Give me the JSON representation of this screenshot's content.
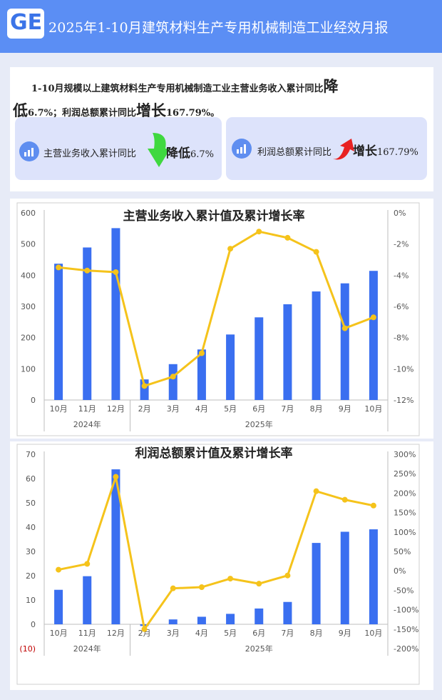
{
  "header": {
    "logo_text": "GE",
    "title": "2025年1-10月建筑材料生产专用机械制造工业经效月报"
  },
  "summary": {
    "text_part1": "1-10月规模以上建筑材料生产专用机械制造工业主营业务收入累计同比",
    "text_big1": "降",
    "text_big1b": "低",
    "text_part2": "6.7%；利润总额累计同比",
    "text_big2": "增长",
    "text_part3": "167.79%。"
  },
  "stats": [
    {
      "label": "主营业务收入累计同比",
      "direction": "降低",
      "value": "6.7%",
      "arrow": "down-arrow-icon",
      "arrow_color": "#3bd63b"
    },
    {
      "label": "利润总额累计同比",
      "direction": "增长",
      "value": "167.79%",
      "arrow": "up-arrow-icon",
      "arrow_color": "#e82020"
    }
  ],
  "colors": {
    "bar": "#3a6ff0",
    "line": "#f5c31b",
    "header": "#5b8ef4"
  },
  "chart_data": [
    {
      "type": "bar",
      "title": "主营业务收入累计值及累计增长率",
      "categories": [
        "10月",
        "11月",
        "12月",
        "2月",
        "3月",
        "4月",
        "5月",
        "6月",
        "7月",
        "8月",
        "9月",
        "10月"
      ],
      "groups": [
        {
          "label": "2024年",
          "span": 3
        },
        {
          "label": "2025年",
          "span": 9
        }
      ],
      "series": [
        {
          "values": [
            437,
            489,
            551,
            66,
            115,
            162,
            210,
            265,
            307,
            348,
            374,
            414
          ],
          "axis": "left",
          "type": "bar"
        },
        {
          "values": [
            -3.5,
            -3.7,
            -3.8,
            -11.1,
            -10.5,
            -9.0,
            -2.3,
            -1.2,
            -1.6,
            -2.5,
            -7.4,
            -6.7
          ],
          "axis": "right",
          "type": "line"
        }
      ],
      "y_left": {
        "min": 0,
        "max": 600,
        "ticks": [
          "0",
          "100",
          "200",
          "300",
          "400",
          "500",
          "600"
        ]
      },
      "y_right": {
        "min": -12,
        "max": 0,
        "ticks": [
          "-12%",
          "-10%",
          "-8%",
          "-6%",
          "-4%",
          "-2%",
          "0%"
        ]
      }
    },
    {
      "type": "bar",
      "title": "利润总额累计值及累计增长率",
      "categories": [
        "10月",
        "11月",
        "12月",
        "2月",
        "3月",
        "4月",
        "5月",
        "6月",
        "7月",
        "8月",
        "9月",
        "10月"
      ],
      "groups": [
        {
          "label": "2024年",
          "span": 3
        },
        {
          "label": "2025年",
          "span": 9
        }
      ],
      "series": [
        {
          "values": [
            14.2,
            19.8,
            63.8,
            -0.7,
            2.0,
            3.1,
            4.3,
            6.5,
            9.2,
            33.5,
            38.1,
            39.1
          ],
          "axis": "left",
          "type": "bar"
        },
        {
          "values": [
            3,
            18,
            242,
            -150,
            -45,
            -42,
            -20,
            -33,
            -12,
            205,
            183,
            168
          ],
          "axis": "right",
          "type": "line"
        }
      ],
      "y_left": {
        "min": -10,
        "max": 70,
        "ticks": [
          "(10)",
          "0",
          "10",
          "20",
          "30",
          "40",
          "50",
          "60",
          "70"
        ]
      },
      "y_right": {
        "min": -200,
        "max": 300,
        "ticks": [
          "-200%",
          "-150%",
          "-100%",
          "-50%",
          "0%",
          "50%",
          "100%",
          "150%",
          "200%",
          "250%",
          "300%"
        ]
      }
    }
  ]
}
